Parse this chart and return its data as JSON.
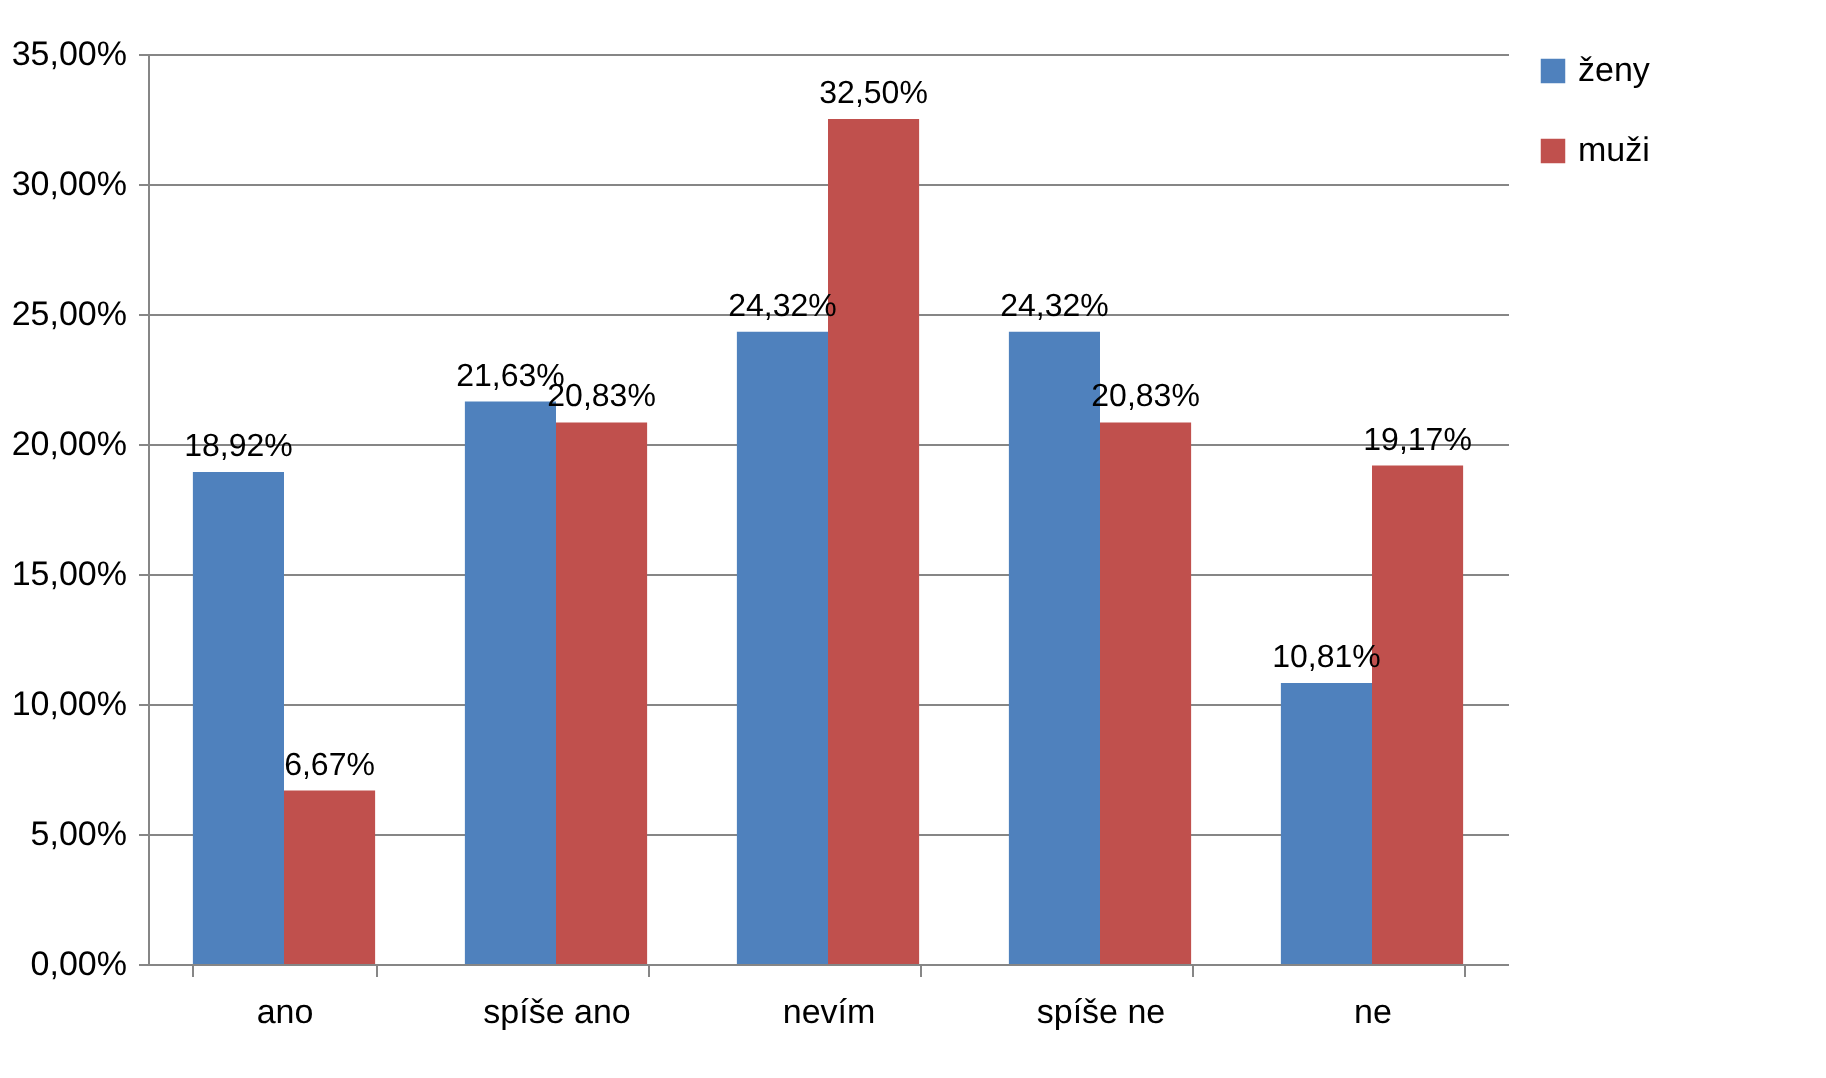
{
  "chart_data": {
    "type": "bar",
    "categories": [
      "ano",
      "spíše ano",
      "nevím",
      "spíše ne",
      "ne"
    ],
    "series": [
      {
        "name": "ženy",
        "color": "#4f81bd",
        "values": [
          18.92,
          21.63,
          24.32,
          24.32,
          10.81
        ],
        "value_labels": [
          "18,92%",
          "21,63%",
          "24,32%",
          "24,32%",
          "10,81%"
        ]
      },
      {
        "name": "muži",
        "color": "#c0504d",
        "values": [
          6.67,
          20.83,
          32.5,
          20.83,
          19.17
        ],
        "value_labels": [
          "6,67%",
          "20,83%",
          "32,50%",
          "20,83%",
          "19,17%"
        ]
      }
    ],
    "ylim": [
      0,
      35
    ],
    "yticks": [
      {
        "value": 0,
        "label": "0,00%"
      },
      {
        "value": 5,
        "label": "5,00%"
      },
      {
        "value": 10,
        "label": "10,00%"
      },
      {
        "value": 15,
        "label": "15,00%"
      },
      {
        "value": 20,
        "label": "20,00%"
      },
      {
        "value": 25,
        "label": "25,00%"
      },
      {
        "value": 30,
        "label": "30,00%"
      },
      {
        "value": 35,
        "label": "35,00%"
      }
    ],
    "grid": "y",
    "legend": "right"
  }
}
